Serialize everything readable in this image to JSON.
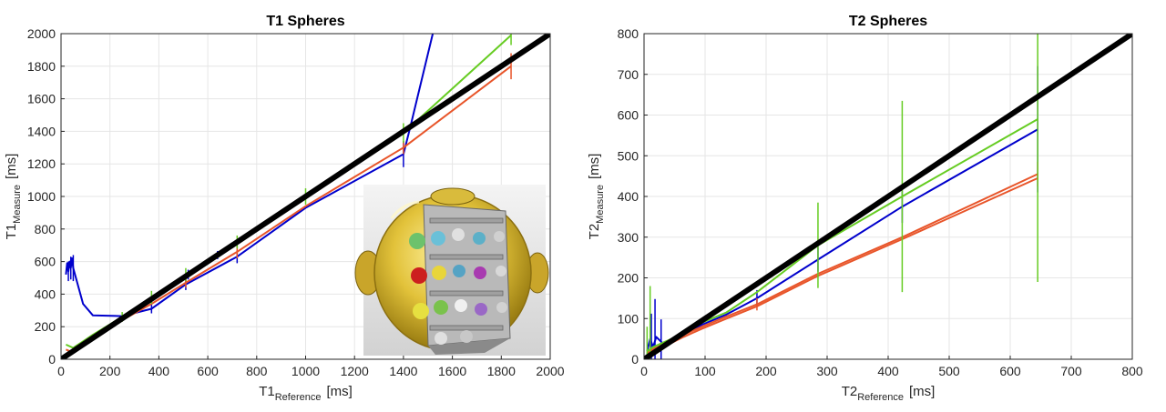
{
  "chart_data": [
    {
      "type": "line",
      "title": "T1 Spheres",
      "xlabel": {
        "base": "T1",
        "sub": "Reference",
        "unit": "[ms]"
      },
      "ylabel": {
        "base": "T1",
        "sub": "Measure",
        "unit": "[ms]"
      },
      "xlim": [
        0,
        2000
      ],
      "ylim": [
        0,
        2000
      ],
      "xticks": [
        "0",
        "200",
        "400",
        "600",
        "800",
        "1000",
        "1200",
        "1400",
        "1600",
        "1800",
        "2000"
      ],
      "yticks": [
        "0",
        "200",
        "400",
        "600",
        "800",
        "1000",
        "1200",
        "1400",
        "1600",
        "1800",
        "2000"
      ],
      "grid": true,
      "inset_image": "phantom-sphere-cutaway",
      "identity_line": {
        "x": [
          0,
          2000
        ],
        "y": [
          0,
          2000
        ],
        "color": "#000000"
      },
      "series": [
        {
          "color": "#0000cc",
          "x": [
            20,
            25,
            30,
            35,
            40,
            45,
            50,
            90,
            130,
            250,
            370,
            510,
            720,
            1000,
            1400,
            1430,
            1520
          ],
          "y": [
            520,
            590,
            540,
            600,
            560,
            620,
            560,
            340,
            270,
            265,
            310,
            460,
            630,
            930,
            1260,
            1440,
            2000
          ],
          "errors": [
            [
              30,
              60
            ],
            [
              50,
              80
            ],
            [
              40,
              70
            ],
            [
              520,
              30
            ],
            [
              640,
              25
            ],
            [
              370,
              28
            ],
            [
              510,
              35
            ],
            [
              720,
              40
            ],
            [
              1400,
              80
            ]
          ]
        },
        {
          "color": "#e8552a",
          "x": [
            20,
            50,
            70,
            120,
            250,
            370,
            510,
            720,
            1000,
            1400,
            1840
          ],
          "y": [
            60,
            40,
            80,
            120,
            240,
            340,
            470,
            660,
            940,
            1300,
            1800
          ],
          "errors": [
            [
              1840,
              80
            ],
            [
              1400,
              40
            ],
            [
              720,
              40
            ],
            [
              510,
              30
            ]
          ]
        },
        {
          "color": "#66cc22",
          "x": [
            20,
            50,
            90,
            130,
            250,
            370,
            510,
            720,
            1000,
            1400,
            1840
          ],
          "y": [
            90,
            70,
            110,
            150,
            260,
            380,
            520,
            720,
            1000,
            1390,
            1990
          ],
          "errors": [
            [
              1840,
              60
            ],
            [
              1400,
              60
            ],
            [
              1000,
              50
            ],
            [
              720,
              40
            ],
            [
              510,
              40
            ],
            [
              370,
              40
            ],
            [
              250,
              30
            ]
          ]
        }
      ]
    },
    {
      "type": "line",
      "title": "T2 Spheres",
      "xlabel": {
        "base": "T2",
        "sub": "Reference",
        "unit": "[ms]"
      },
      "ylabel": {
        "base": "T2",
        "sub": "Measure",
        "unit": "[ms]"
      },
      "xlim": [
        0,
        800
      ],
      "ylim": [
        0,
        800
      ],
      "xticks": [
        "0",
        "100",
        "200",
        "300",
        "400",
        "500",
        "600",
        "700",
        "800"
      ],
      "yticks": [
        "0",
        "100",
        "200",
        "300",
        "400",
        "500",
        "600",
        "700",
        "800"
      ],
      "grid": true,
      "identity_line": {
        "x": [
          0,
          800
        ],
        "y": [
          0,
          800
        ],
        "color": "#000000"
      },
      "series": [
        {
          "color": "#0000cc",
          "x": [
            5,
            10,
            15,
            20,
            30,
            45,
            65,
            95,
            135,
            185,
            285,
            423,
            645
          ],
          "y": [
            20,
            50,
            30,
            55,
            40,
            45,
            60,
            85,
            110,
            150,
            245,
            375,
            565
          ],
          "errors": [
            [
              645,
              155
            ],
            [
              423,
              40
            ],
            [
              285,
              30
            ],
            [
              185,
              20
            ],
            [
              28,
              70
            ],
            [
              18,
              130
            ],
            [
              12,
              100
            ]
          ]
        },
        {
          "color": "#e8552a",
          "x": [
            5,
            15,
            30,
            45,
            65,
            95,
            135,
            185,
            285,
            423,
            645
          ],
          "y": [
            15,
            25,
            35,
            45,
            60,
            80,
            105,
            135,
            210,
            300,
            455
          ],
          "errors": [
            [
              645,
              30
            ],
            [
              185,
              15
            ]
          ]
        },
        {
          "color": "#e8552a",
          "x": [
            5,
            15,
            30,
            45,
            65,
            95,
            135,
            185,
            285,
            423,
            645
          ],
          "y": [
            10,
            20,
            30,
            40,
            55,
            75,
            100,
            130,
            205,
            295,
            445
          ],
          "errors": []
        },
        {
          "color": "#66cc22",
          "x": [
            5,
            15,
            30,
            45,
            65,
            95,
            135,
            185,
            285,
            423,
            645
          ],
          "y": [
            20,
            30,
            40,
            50,
            65,
            90,
            115,
            165,
            280,
            400,
            590
          ],
          "errors": [
            [
              645,
              400
            ],
            [
              423,
              235
            ],
            [
              285,
              105
            ],
            [
              10,
              170
            ],
            [
              5,
              60
            ]
          ]
        }
      ]
    }
  ]
}
